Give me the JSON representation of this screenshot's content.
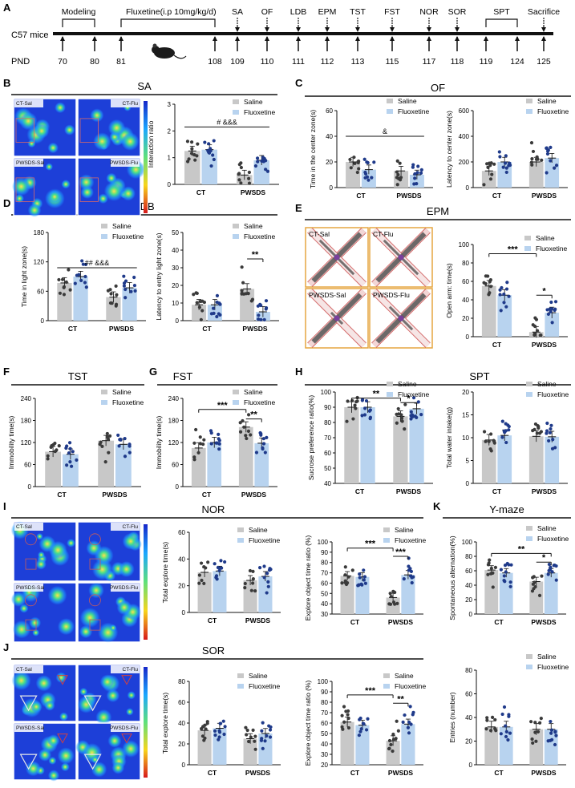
{
  "timeline": {
    "section": "A",
    "subject": "C57 mice",
    "pnd_label": "PND",
    "brackets": [
      {
        "label": "Modeling",
        "from": 70,
        "to": 80
      },
      {
        "label": "Fluxetine(i.p 10mg/kg/d)",
        "from": 81,
        "to": 108
      },
      {
        "label": "SPT",
        "from": 119,
        "to": 124
      }
    ],
    "days": [
      "70",
      "80",
      "81",
      "108",
      "109",
      "110",
      "111",
      "112",
      "113",
      "115",
      "117",
      "118",
      "119",
      "124",
      "125"
    ],
    "tests": [
      {
        "label": "SA",
        "day": "109"
      },
      {
        "label": "OF",
        "day": "110"
      },
      {
        "label": "LDB",
        "day": "111"
      },
      {
        "label": "EPM",
        "day": "112"
      },
      {
        "label": "TST",
        "day": "113"
      },
      {
        "label": "FST",
        "day": "115"
      },
      {
        "label": "NOR",
        "day": "117"
      },
      {
        "label": "SOR",
        "day": "118"
      },
      {
        "label": "Sacrifice",
        "day": "125"
      }
    ]
  },
  "legend": {
    "saline": "Saline",
    "fluoxetine": "Fluoxetine"
  },
  "colors": {
    "saline": "#c8c8c8",
    "fluoxetine": "#b8d3ef",
    "ct_dot": "#3a3a3a",
    "flx_dot": "#1f3a8a",
    "arena_border": "#e6a640"
  },
  "panels": {
    "B": {
      "letter": "B",
      "title": "SA",
      "images": [
        "CT-Sal",
        "CT-Flu",
        "PWSDS-Sal",
        "PWSDS-Flu"
      ]
    },
    "C": {
      "letter": "C",
      "title": "OF"
    },
    "D": {
      "letter": "D",
      "title": "LDB"
    },
    "E": {
      "letter": "E",
      "title": "EPM",
      "images": [
        "CT-Sal",
        "CT-Flu",
        "PWSDS-Sal",
        "PWSDS-Flu"
      ]
    },
    "F": {
      "letter": "F",
      "title": "TST"
    },
    "G": {
      "letter": "G",
      "title": "FST"
    },
    "H": {
      "letter": "H",
      "title": "SPT"
    },
    "I": {
      "letter": "I",
      "title": "NOR",
      "images": [
        "CT-Sal",
        "CT-Flu",
        "PWSDS-Sal",
        "PWSDS-Flu"
      ]
    },
    "J": {
      "letter": "J",
      "title": "SOR",
      "images": [
        "CT-Sal",
        "CT-Flu",
        "PWSDS-Sal",
        "PWSDS-Flu"
      ]
    },
    "K": {
      "letter": "K",
      "title": "Y-maze"
    }
  },
  "chart_data": [
    {
      "id": "sa_ratio",
      "type": "bar",
      "ylabel": "Interaction ratio",
      "categories": [
        "CT",
        "PWSDS"
      ],
      "ylim": [
        0,
        3
      ],
      "yticks": [
        0,
        1,
        2,
        3
      ],
      "series": [
        {
          "name": "Saline",
          "values": [
            1.25,
            0.35
          ]
        },
        {
          "name": "Fluoxetine",
          "values": [
            1.3,
            0.9
          ]
        }
      ],
      "annotations": [
        {
          "text": "# &&&"
        }
      ]
    },
    {
      "id": "of_time",
      "type": "bar",
      "ylabel": "Time in the center zone(s)",
      "categories": [
        "CT",
        "PWSDS"
      ],
      "ylim": [
        0,
        60
      ],
      "yticks": [
        0,
        20,
        40,
        60
      ],
      "series": [
        {
          "name": "Saline",
          "values": [
            20,
            13
          ]
        },
        {
          "name": "Fluoxetine",
          "values": [
            14,
            10
          ]
        }
      ],
      "annotations": [
        {
          "text": "&"
        }
      ]
    },
    {
      "id": "of_latency",
      "type": "bar",
      "ylabel": "Latency to center zone(s)",
      "categories": [
        "CT",
        "PWSDS"
      ],
      "ylim": [
        0,
        600
      ],
      "yticks": [
        0,
        200,
        400,
        600
      ],
      "series": [
        {
          "name": "Saline",
          "values": [
            130,
            200
          ]
        },
        {
          "name": "Fluoxetine",
          "values": [
            200,
            230
          ]
        }
      ]
    },
    {
      "id": "ldb_time",
      "type": "bar",
      "ylabel": "Time in light zone(s)",
      "categories": [
        "CT",
        "PWSDS"
      ],
      "ylim": [
        0,
        180
      ],
      "yticks": [
        0,
        60,
        120,
        180
      ],
      "series": [
        {
          "name": "Saline",
          "values": [
            77,
            48
          ]
        },
        {
          "name": "Fluoxetine",
          "values": [
            90,
            67
          ]
        }
      ],
      "annotations": [
        {
          "text": "## &&&"
        }
      ]
    },
    {
      "id": "ldb_latency",
      "type": "bar",
      "ylabel": "Latency to entry light zone(s)",
      "categories": [
        "CT",
        "PWSDS"
      ],
      "ylim": [
        0,
        50
      ],
      "yticks": [
        0,
        10,
        20,
        30,
        40,
        50
      ],
      "series": [
        {
          "name": "Saline",
          "values": [
            9,
            18
          ]
        },
        {
          "name": "Fluoxetine",
          "values": [
            9,
            5
          ]
        }
      ],
      "annotations": [
        {
          "text": "**"
        }
      ]
    },
    {
      "id": "epm_open",
      "type": "bar",
      "ylabel": "Open arm: time(s)",
      "categories": [
        "CT",
        "PWSDS"
      ],
      "ylim": [
        0,
        100
      ],
      "yticks": [
        0,
        20,
        40,
        60,
        80,
        100
      ],
      "series": [
        {
          "name": "Saline",
          "values": [
            55,
            5
          ]
        },
        {
          "name": "Fluoxetine",
          "values": [
            45,
            26
          ]
        }
      ],
      "annotations": [
        {
          "text": "***"
        },
        {
          "text": "*"
        }
      ]
    },
    {
      "id": "tst_immobility",
      "type": "bar",
      "ylabel": "Immobility time(s)",
      "categories": [
        "CT",
        "PWSDS"
      ],
      "ylim": [
        0,
        240
      ],
      "yticks": [
        0,
        60,
        120,
        180,
        240
      ],
      "series": [
        {
          "name": "Saline",
          "values": [
            95,
            125
          ]
        },
        {
          "name": "Fluoxetine",
          "values": [
            88,
            115
          ]
        }
      ]
    },
    {
      "id": "fst_immobility",
      "type": "bar",
      "ylabel": "Immobility time(s)",
      "categories": [
        "CT",
        "PWSDS"
      ],
      "ylim": [
        0,
        240
      ],
      "yticks": [
        0,
        60,
        120,
        180,
        240
      ],
      "series": [
        {
          "name": "Saline",
          "values": [
            105,
            162
          ]
        },
        {
          "name": "Fluoxetine",
          "values": [
            120,
            118
          ]
        }
      ],
      "annotations": [
        {
          "text": "***"
        },
        {
          "text": "**"
        }
      ]
    },
    {
      "id": "spt_preference",
      "type": "bar",
      "ylabel": "Sucrose preference ratio(%)",
      "categories": [
        "CT",
        "PWSDS"
      ],
      "ylim": [
        40,
        100
      ],
      "yticks": [
        40,
        50,
        60,
        70,
        80,
        90,
        100
      ],
      "series": [
        {
          "name": "Saline",
          "values": [
            90,
            84
          ]
        },
        {
          "name": "Fluoxetine",
          "values": [
            90,
            89
          ]
        }
      ],
      "annotations": [
        {
          "text": "**"
        },
        {
          "text": "*"
        }
      ]
    },
    {
      "id": "spt_water",
      "type": "bar",
      "ylabel": "Total water intake(g)",
      "categories": [
        "CT",
        "PWSDS"
      ],
      "ylim": [
        0,
        20
      ],
      "yticks": [
        0,
        5,
        10,
        15,
        20
      ],
      "series": [
        {
          "name": "Saline",
          "values": [
            9.5,
            10.3
          ]
        },
        {
          "name": "Fluoxetine",
          "values": [
            10.5,
            10.2
          ]
        }
      ]
    },
    {
      "id": "nor_total",
      "type": "bar",
      "ylabel": "Total explore  time(s)",
      "categories": [
        "CT",
        "PWSDS"
      ],
      "ylim": [
        0,
        60
      ],
      "yticks": [
        0,
        20,
        40,
        60
      ],
      "series": [
        {
          "name": "Saline",
          "values": [
            30,
            24
          ]
        },
        {
          "name": "Fluoxetine",
          "values": [
            31,
            27
          ]
        }
      ]
    },
    {
      "id": "nor_ratio",
      "type": "bar",
      "ylabel": "Explore object time ratio (%)",
      "categories": [
        "CT",
        "PWSDS"
      ],
      "ylim": [
        30,
        100
      ],
      "yticks": [
        30,
        40,
        50,
        60,
        70,
        80,
        90,
        100
      ],
      "series": [
        {
          "name": "Saline",
          "values": [
            67,
            46
          ]
        },
        {
          "name": "Fluoxetine",
          "values": [
            66,
            68
          ]
        }
      ],
      "annotations": [
        {
          "text": "***"
        },
        {
          "text": "***"
        }
      ]
    },
    {
      "id": "ymaze_alt",
      "type": "bar",
      "ylabel": "Spontaneous alternation(%)",
      "categories": [
        "CT",
        "PWSDS"
      ],
      "ylim": [
        0,
        100
      ],
      "yticks": [
        0,
        20,
        40,
        60,
        80,
        100
      ],
      "series": [
        {
          "name": "Saline",
          "values": [
            61,
            45
          ]
        },
        {
          "name": "Fluoxetine",
          "values": [
            57,
            57
          ]
        }
      ],
      "annotations": [
        {
          "text": "**"
        },
        {
          "text": "*"
        }
      ]
    },
    {
      "id": "sor_total",
      "type": "bar",
      "ylabel": "Total explore  time(s)",
      "categories": [
        "CT",
        "PWSDS"
      ],
      "ylim": [
        0,
        80
      ],
      "yticks": [
        0,
        20,
        40,
        60,
        80
      ],
      "series": [
        {
          "name": "Saline",
          "values": [
            33,
            25
          ]
        },
        {
          "name": "Fluoxetine",
          "values": [
            35,
            30
          ]
        }
      ]
    },
    {
      "id": "sor_ratio",
      "type": "bar",
      "ylabel": "Explore object time ratio (%)",
      "categories": [
        "CT",
        "PWSDS"
      ],
      "ylim": [
        20,
        100
      ],
      "yticks": [
        20,
        30,
        40,
        50,
        60,
        70,
        80,
        90,
        100
      ],
      "series": [
        {
          "name": "Saline",
          "values": [
            61,
            43
          ]
        },
        {
          "name": "Fluoxetine",
          "values": [
            58,
            59
          ]
        }
      ],
      "annotations": [
        {
          "text": "***"
        },
        {
          "text": "**"
        }
      ]
    },
    {
      "id": "ymaze_entries",
      "type": "bar",
      "ylabel": "Entries (number)",
      "categories": [
        "CT",
        "PWSDS"
      ],
      "ylim": [
        0,
        80
      ],
      "yticks": [
        0,
        20,
        40,
        60,
        80
      ],
      "series": [
        {
          "name": "Saline",
          "values": [
            32,
            30
          ]
        },
        {
          "name": "Fluoxetine",
          "values": [
            32,
            30
          ]
        }
      ]
    }
  ]
}
